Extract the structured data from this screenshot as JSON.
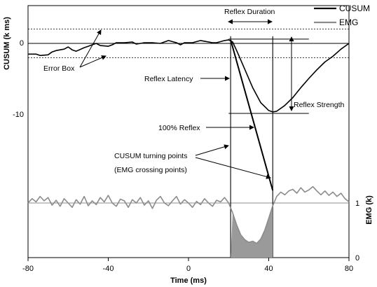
{
  "chart_data": {
    "type": "line",
    "xlabel": "Time (ms)",
    "ylabel_left": "CUSUM (k ms)",
    "ylabel_right": "EMG (k)",
    "xlim": [
      -80,
      80
    ],
    "x_ticks": [
      "-80",
      "-40",
      "0",
      "40",
      "80"
    ],
    "y_left_ticks": [
      "0",
      "-10"
    ],
    "y_right_ticks": [
      "1",
      "0"
    ],
    "legend_position": "top-right",
    "series": [
      {
        "name": "CUSUM",
        "color": "#000000",
        "points": [
          [
            -80,
            -1.5
          ],
          [
            -76,
            -1.5
          ],
          [
            -74,
            -1.7
          ],
          [
            -70,
            -1.6
          ],
          [
            -68,
            -1.2
          ],
          [
            -66,
            -1.0
          ],
          [
            -62,
            -0.8
          ],
          [
            -60,
            -0.5
          ],
          [
            -58,
            -0.9
          ],
          [
            -56,
            -1.1
          ],
          [
            -52,
            -0.6
          ],
          [
            -50,
            -0.4
          ],
          [
            -48,
            -0.2
          ],
          [
            -46,
            0.0
          ],
          [
            -44,
            -0.3
          ],
          [
            -40,
            -0.4
          ],
          [
            -38,
            -0.2
          ],
          [
            -36,
            0.1
          ],
          [
            -32,
            0.1
          ],
          [
            -28,
            0.2
          ],
          [
            -26,
            -0.1
          ],
          [
            -22,
            0.1
          ],
          [
            -18,
            0.1
          ],
          [
            -14,
            0.0
          ],
          [
            -10,
            0.4
          ],
          [
            -6,
            0.1
          ],
          [
            -4,
            -0.2
          ],
          [
            -2,
            0.1
          ],
          [
            2,
            0.1
          ],
          [
            6,
            0.4
          ],
          [
            8,
            0.3
          ],
          [
            12,
            0.1
          ],
          [
            14,
            0.1
          ],
          [
            18,
            0.4
          ],
          [
            20,
            0.5
          ],
          [
            22,
            0.2
          ],
          [
            24,
            -1.0
          ],
          [
            28,
            -3.6
          ],
          [
            32,
            -6.2
          ],
          [
            36,
            -8.3
          ],
          [
            40,
            -9.4
          ],
          [
            42,
            -9.6
          ],
          [
            44,
            -9.5
          ],
          [
            48,
            -8.7
          ],
          [
            52,
            -7.6
          ],
          [
            56,
            -6.2
          ],
          [
            60,
            -4.9
          ],
          [
            64,
            -3.7
          ],
          [
            68,
            -2.6
          ],
          [
            72,
            -1.8
          ],
          [
            76,
            -0.8
          ],
          [
            80,
            0.0
          ]
        ]
      },
      {
        "name": "EMG",
        "color": "#808080",
        "points": [
          [
            -80,
            1.0
          ],
          [
            -78,
            1.08
          ],
          [
            -76,
            1.02
          ],
          [
            -74,
            1.12
          ],
          [
            -72,
            1.04
          ],
          [
            -70,
            1.1
          ],
          [
            -68,
            0.96
          ],
          [
            -66,
            1.05
          ],
          [
            -64,
            0.94
          ],
          [
            -62,
            1.08
          ],
          [
            -60,
            1.0
          ],
          [
            -58,
            0.92
          ],
          [
            -56,
            1.06
          ],
          [
            -54,
            0.98
          ],
          [
            -52,
            1.12
          ],
          [
            -50,
            0.95
          ],
          [
            -48,
            1.04
          ],
          [
            -46,
            0.97
          ],
          [
            -44,
            1.1
          ],
          [
            -42,
            1.02
          ],
          [
            -40,
            1.14
          ],
          [
            -38,
            1.0
          ],
          [
            -36,
            0.94
          ],
          [
            -34,
            1.07
          ],
          [
            -32,
            1.04
          ],
          [
            -30,
            0.92
          ],
          [
            -28,
            1.06
          ],
          [
            -26,
            1.0
          ],
          [
            -24,
            1.1
          ],
          [
            -22,
            0.96
          ],
          [
            -20,
            1.04
          ],
          [
            -18,
            0.9
          ],
          [
            -16,
            1.05
          ],
          [
            -14,
            1.12
          ],
          [
            -12,
            1.0
          ],
          [
            -10,
            0.95
          ],
          [
            -8,
            1.04
          ],
          [
            -6,
            1.12
          ],
          [
            -4,
            0.98
          ],
          [
            -2,
            1.06
          ],
          [
            0,
            1.0
          ],
          [
            2,
            0.92
          ],
          [
            4,
            1.03
          ],
          [
            6,
            0.97
          ],
          [
            8,
            1.08
          ],
          [
            10,
            1.0
          ],
          [
            12,
            0.94
          ],
          [
            14,
            1.05
          ],
          [
            16,
            1.02
          ],
          [
            18,
            1.1
          ],
          [
            20,
            1.0
          ],
          [
            22,
            0.82
          ],
          [
            24,
            0.6
          ],
          [
            26,
            0.42
          ],
          [
            28,
            0.33
          ],
          [
            30,
            0.28
          ],
          [
            32,
            0.3
          ],
          [
            34,
            0.26
          ],
          [
            36,
            0.34
          ],
          [
            38,
            0.5
          ],
          [
            40,
            0.72
          ],
          [
            42,
            0.95
          ],
          [
            44,
            1.12
          ],
          [
            46,
            1.2
          ],
          [
            48,
            1.15
          ],
          [
            50,
            1.22
          ],
          [
            52,
            1.25
          ],
          [
            54,
            1.18
          ],
          [
            56,
            1.28
          ],
          [
            58,
            1.2
          ],
          [
            60,
            1.24
          ],
          [
            62,
            1.3
          ],
          [
            64,
            1.22
          ],
          [
            66,
            1.15
          ],
          [
            68,
            1.22
          ],
          [
            70,
            1.14
          ],
          [
            72,
            1.2
          ],
          [
            74,
            1.12
          ],
          [
            76,
            1.18
          ],
          [
            78,
            1.08
          ],
          [
            80,
            1.02
          ]
        ]
      }
    ],
    "reference_lines": {
      "cusum_zero": 0,
      "error_box_upper": 2,
      "error_box_lower": -2,
      "reflex_bottom": -9.8,
      "emg_baseline": 1,
      "turning_points_ms": [
        21,
        42
      ]
    },
    "annotations": [
      "Reflex Duration",
      "Error Box",
      "Reflex Latency",
      "Reflex Strength",
      "100% Reflex",
      "CUSUM turning points",
      "(EMG crossing points)"
    ]
  }
}
